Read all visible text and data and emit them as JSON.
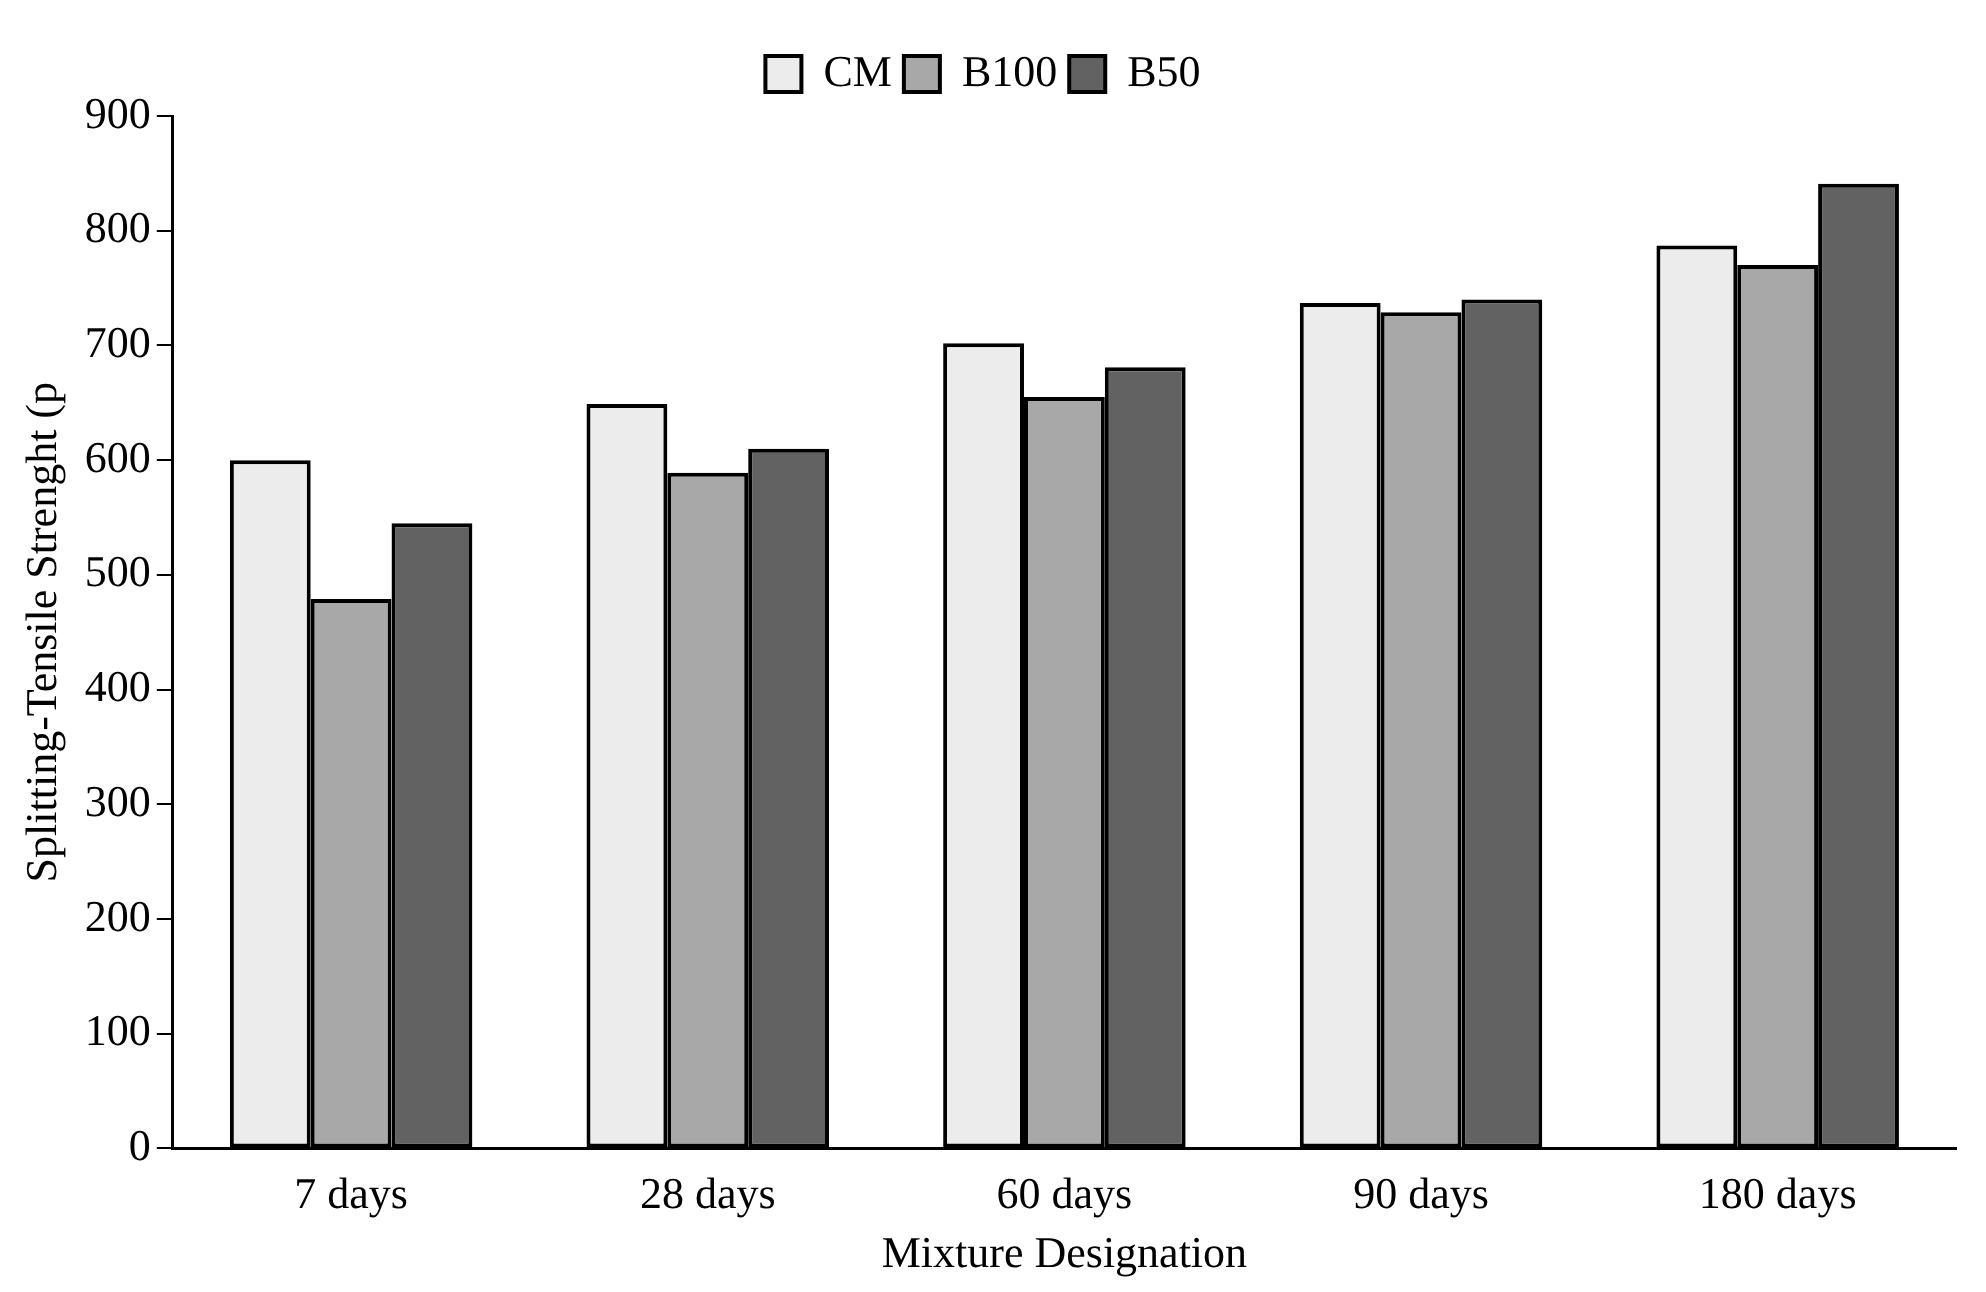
{
  "chart_data": {
    "type": "bar",
    "xlabel": "Mixture Designation",
    "ylabel": "Splitting-Tensile Strenght (p",
    "categories": [
      "7 days",
      "28 days",
      "60 days",
      "90 days",
      "180 days"
    ],
    "series": [
      {
        "name": "CM",
        "color": "#ececec",
        "values": [
          600,
          649,
          702,
          737,
          787
        ]
      },
      {
        "name": "B100",
        "color": "#a8a8a8",
        "values": [
          479,
          589,
          655,
          729,
          770
        ]
      },
      {
        "name": "B50",
        "color": "#626262",
        "values": [
          545,
          610,
          681,
          740,
          841
        ]
      }
    ],
    "ylim": [
      0,
      900
    ],
    "yticks": [
      0,
      100,
      200,
      300,
      400,
      500,
      600,
      700,
      800,
      900
    ],
    "grid": false,
    "legend": "top"
  }
}
